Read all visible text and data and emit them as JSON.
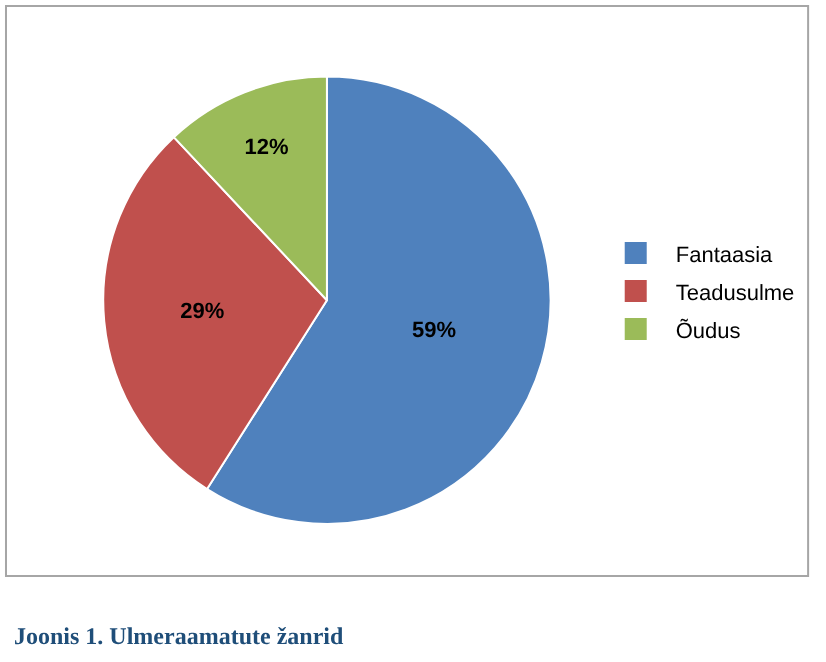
{
  "chart_data": {
    "type": "pie",
    "categories": [
      "Fantaasia",
      "Teadusulme",
      "Õudus"
    ],
    "values": [
      59,
      29,
      12
    ],
    "value_labels": [
      "59%",
      "29%",
      "12%"
    ],
    "colors": [
      "#4f81bd",
      "#c0504d",
      "#9bbb59"
    ],
    "legend": "right",
    "annotations": [
      "Joonis 1. Ulmeraamatute žanrid"
    ]
  }
}
